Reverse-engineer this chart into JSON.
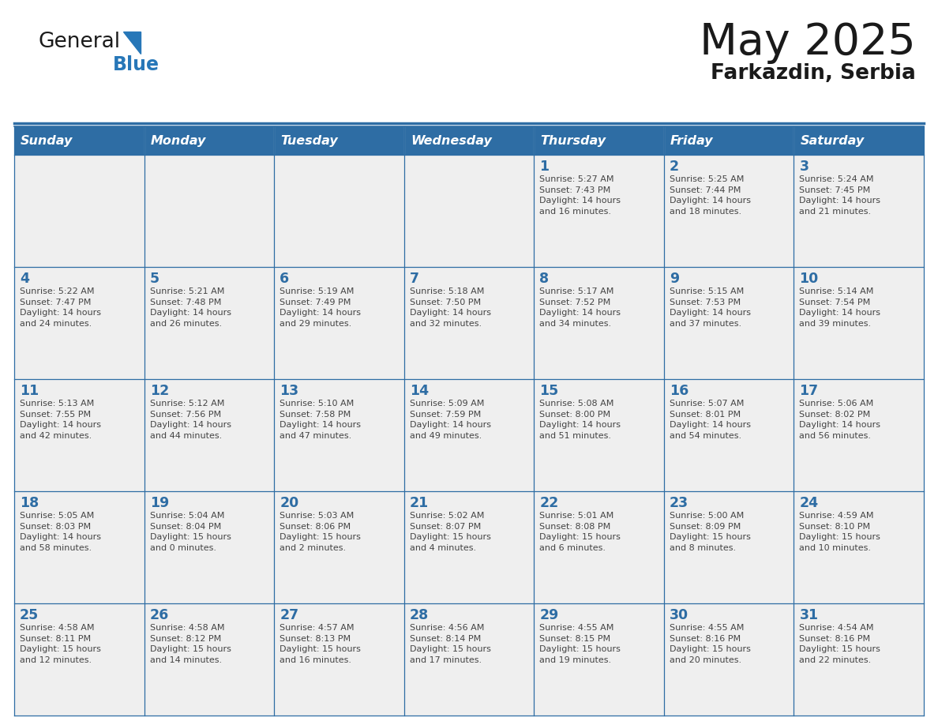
{
  "title": "May 2025",
  "subtitle": "Farkazdin, Serbia",
  "header_bg": "#2E6DA4",
  "header_text_color": "#FFFFFF",
  "cell_bg": "#EFEFEF",
  "day_number_color": "#2E6DA4",
  "info_text_color": "#444444",
  "days_of_week": [
    "Sunday",
    "Monday",
    "Tuesday",
    "Wednesday",
    "Thursday",
    "Friday",
    "Saturday"
  ],
  "weeks": [
    [
      {
        "day": "",
        "info": ""
      },
      {
        "day": "",
        "info": ""
      },
      {
        "day": "",
        "info": ""
      },
      {
        "day": "",
        "info": ""
      },
      {
        "day": "1",
        "info": "Sunrise: 5:27 AM\nSunset: 7:43 PM\nDaylight: 14 hours\nand 16 minutes."
      },
      {
        "day": "2",
        "info": "Sunrise: 5:25 AM\nSunset: 7:44 PM\nDaylight: 14 hours\nand 18 minutes."
      },
      {
        "day": "3",
        "info": "Sunrise: 5:24 AM\nSunset: 7:45 PM\nDaylight: 14 hours\nand 21 minutes."
      }
    ],
    [
      {
        "day": "4",
        "info": "Sunrise: 5:22 AM\nSunset: 7:47 PM\nDaylight: 14 hours\nand 24 minutes."
      },
      {
        "day": "5",
        "info": "Sunrise: 5:21 AM\nSunset: 7:48 PM\nDaylight: 14 hours\nand 26 minutes."
      },
      {
        "day": "6",
        "info": "Sunrise: 5:19 AM\nSunset: 7:49 PM\nDaylight: 14 hours\nand 29 minutes."
      },
      {
        "day": "7",
        "info": "Sunrise: 5:18 AM\nSunset: 7:50 PM\nDaylight: 14 hours\nand 32 minutes."
      },
      {
        "day": "8",
        "info": "Sunrise: 5:17 AM\nSunset: 7:52 PM\nDaylight: 14 hours\nand 34 minutes."
      },
      {
        "day": "9",
        "info": "Sunrise: 5:15 AM\nSunset: 7:53 PM\nDaylight: 14 hours\nand 37 minutes."
      },
      {
        "day": "10",
        "info": "Sunrise: 5:14 AM\nSunset: 7:54 PM\nDaylight: 14 hours\nand 39 minutes."
      }
    ],
    [
      {
        "day": "11",
        "info": "Sunrise: 5:13 AM\nSunset: 7:55 PM\nDaylight: 14 hours\nand 42 minutes."
      },
      {
        "day": "12",
        "info": "Sunrise: 5:12 AM\nSunset: 7:56 PM\nDaylight: 14 hours\nand 44 minutes."
      },
      {
        "day": "13",
        "info": "Sunrise: 5:10 AM\nSunset: 7:58 PM\nDaylight: 14 hours\nand 47 minutes."
      },
      {
        "day": "14",
        "info": "Sunrise: 5:09 AM\nSunset: 7:59 PM\nDaylight: 14 hours\nand 49 minutes."
      },
      {
        "day": "15",
        "info": "Sunrise: 5:08 AM\nSunset: 8:00 PM\nDaylight: 14 hours\nand 51 minutes."
      },
      {
        "day": "16",
        "info": "Sunrise: 5:07 AM\nSunset: 8:01 PM\nDaylight: 14 hours\nand 54 minutes."
      },
      {
        "day": "17",
        "info": "Sunrise: 5:06 AM\nSunset: 8:02 PM\nDaylight: 14 hours\nand 56 minutes."
      }
    ],
    [
      {
        "day": "18",
        "info": "Sunrise: 5:05 AM\nSunset: 8:03 PM\nDaylight: 14 hours\nand 58 minutes."
      },
      {
        "day": "19",
        "info": "Sunrise: 5:04 AM\nSunset: 8:04 PM\nDaylight: 15 hours\nand 0 minutes."
      },
      {
        "day": "20",
        "info": "Sunrise: 5:03 AM\nSunset: 8:06 PM\nDaylight: 15 hours\nand 2 minutes."
      },
      {
        "day": "21",
        "info": "Sunrise: 5:02 AM\nSunset: 8:07 PM\nDaylight: 15 hours\nand 4 minutes."
      },
      {
        "day": "22",
        "info": "Sunrise: 5:01 AM\nSunset: 8:08 PM\nDaylight: 15 hours\nand 6 minutes."
      },
      {
        "day": "23",
        "info": "Sunrise: 5:00 AM\nSunset: 8:09 PM\nDaylight: 15 hours\nand 8 minutes."
      },
      {
        "day": "24",
        "info": "Sunrise: 4:59 AM\nSunset: 8:10 PM\nDaylight: 15 hours\nand 10 minutes."
      }
    ],
    [
      {
        "day": "25",
        "info": "Sunrise: 4:58 AM\nSunset: 8:11 PM\nDaylight: 15 hours\nand 12 minutes."
      },
      {
        "day": "26",
        "info": "Sunrise: 4:58 AM\nSunset: 8:12 PM\nDaylight: 15 hours\nand 14 minutes."
      },
      {
        "day": "27",
        "info": "Sunrise: 4:57 AM\nSunset: 8:13 PM\nDaylight: 15 hours\nand 16 minutes."
      },
      {
        "day": "28",
        "info": "Sunrise: 4:56 AM\nSunset: 8:14 PM\nDaylight: 15 hours\nand 17 minutes."
      },
      {
        "day": "29",
        "info": "Sunrise: 4:55 AM\nSunset: 8:15 PM\nDaylight: 15 hours\nand 19 minutes."
      },
      {
        "day": "30",
        "info": "Sunrise: 4:55 AM\nSunset: 8:16 PM\nDaylight: 15 hours\nand 20 minutes."
      },
      {
        "day": "31",
        "info": "Sunrise: 4:54 AM\nSunset: 8:16 PM\nDaylight: 15 hours\nand 22 minutes."
      }
    ]
  ],
  "logo_general_color": "#1a1a1a",
  "logo_blue_color": "#2777B8",
  "line_color": "#2E6DA4",
  "border_color": "#2E6DA4"
}
